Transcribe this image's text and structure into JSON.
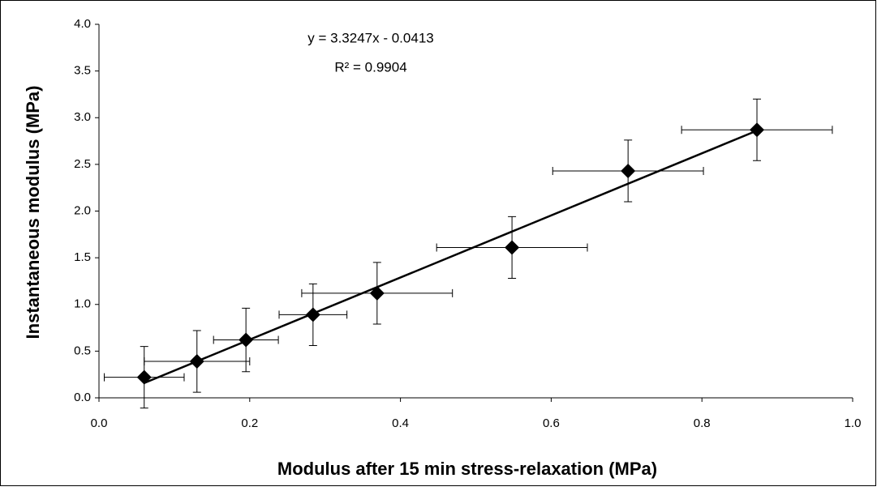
{
  "chart_data": {
    "type": "scatter",
    "x_label": "Modulus after 15 min stress-relaxation (MPa)",
    "y_label": "Instantaneous modulus (MPa)",
    "x": [
      0.06,
      0.13,
      0.195,
      0.284,
      0.369,
      0.548,
      0.702,
      0.873
    ],
    "xerr": [
      0.053,
      0.07,
      0.043,
      0.045,
      0.1,
      0.1,
      0.1,
      0.1
    ],
    "values": [
      0.22,
      0.39,
      0.62,
      0.89,
      1.12,
      1.61,
      2.43,
      2.87
    ],
    "yerr": [
      0.33,
      0.33,
      0.34,
      0.33,
      0.33,
      0.33,
      0.33,
      0.33
    ],
    "color": "#000000",
    "trendline": {
      "slope": 3.3247,
      "intercept": -0.0413,
      "equation": "y = 3.3247x - 0.0413",
      "r_squared": "R² = 0.9904"
    },
    "xlim": [
      0,
      1
    ],
    "xticks": [
      {
        "value": 0,
        "label": "0.0"
      },
      {
        "value": 0.2,
        "label": "0.2"
      },
      {
        "value": 0.4,
        "label": "0.4"
      },
      {
        "value": 0.6,
        "label": "0.6"
      },
      {
        "value": 0.8,
        "label": "0.8"
      },
      {
        "value": 1,
        "label": "1.0"
      }
    ],
    "ylim": [
      0,
      4
    ],
    "yticks": [
      {
        "value": 0,
        "label": "0.0"
      },
      {
        "value": 0.5,
        "label": "0.5"
      },
      {
        "value": 1,
        "label": "1.0"
      },
      {
        "value": 1.5,
        "label": "1.5"
      },
      {
        "value": 2,
        "label": "2.0"
      },
      {
        "value": 2.5,
        "label": "2.5"
      },
      {
        "value": 3,
        "label": "3.0"
      },
      {
        "value": 3.5,
        "label": "3.5"
      },
      {
        "value": 4,
        "label": "4.0"
      }
    ]
  }
}
